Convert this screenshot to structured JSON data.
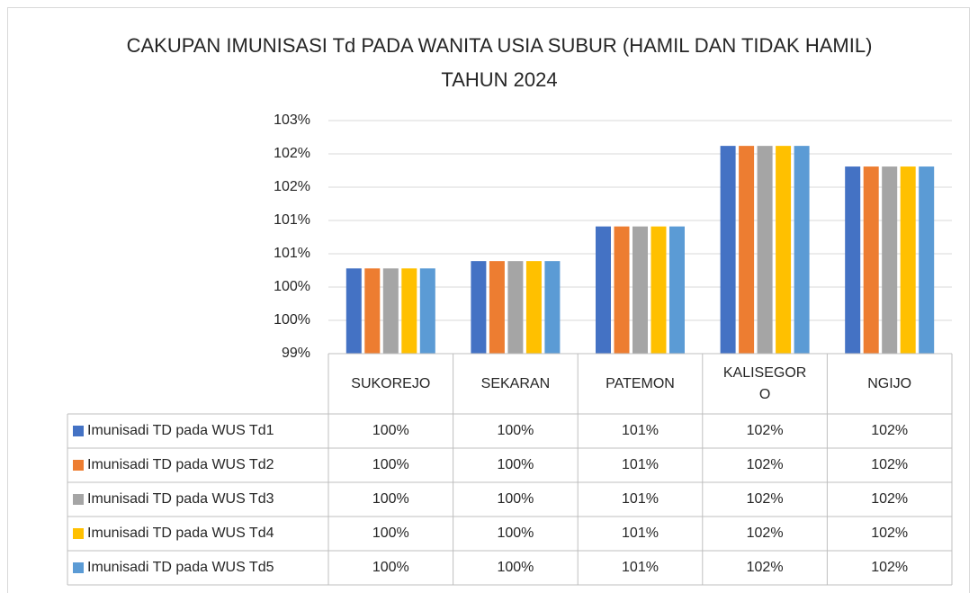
{
  "chart_data": {
    "type": "bar",
    "title": "CAKUPAN IMUNISASI Td PADA WANITA USIA SUBUR (HAMIL DAN TIDAK HAMIL) TAHUN 2024",
    "categories": [
      "SUKOREJO",
      "SEKARAN",
      "PATEMON",
      "KALISEGORO",
      "NGIJO"
    ],
    "series": [
      {
        "name": "Imunisadi TD pada WUS Td1",
        "color": "#4472c4",
        "values": [
          100.28,
          100.39,
          100.91,
          102.12,
          101.81
        ],
        "value_labels": [
          "100%",
          "100%",
          "101%",
          "102%",
          "102%"
        ]
      },
      {
        "name": "Imunisadi TD pada WUS Td2",
        "color": "#ed7d31",
        "values": [
          100.28,
          100.39,
          100.91,
          102.12,
          101.81
        ],
        "value_labels": [
          "100%",
          "100%",
          "101%",
          "102%",
          "102%"
        ]
      },
      {
        "name": "Imunisadi TD pada WUS Td3",
        "color": "#a5a5a5",
        "values": [
          100.28,
          100.39,
          100.91,
          102.12,
          101.81
        ],
        "value_labels": [
          "100%",
          "100%",
          "101%",
          "102%",
          "102%"
        ]
      },
      {
        "name": "Imunisadi TD pada WUS Td4",
        "color": "#ffc000",
        "values": [
          100.28,
          100.39,
          100.91,
          102.12,
          101.81
        ],
        "value_labels": [
          "100%",
          "100%",
          "101%",
          "102%",
          "102%"
        ]
      },
      {
        "name": "Imunisadi TD pada WUS Td5",
        "color": "#5b9bd5",
        "values": [
          100.28,
          100.39,
          100.91,
          102.12,
          101.81
        ],
        "value_labels": [
          "100%",
          "100%",
          "101%",
          "102%",
          "102%"
        ]
      }
    ],
    "ylim": [
      99,
      102.5
    ],
    "yticks": [
      {
        "value": 99,
        "label": "99%"
      },
      {
        "value": 99.5,
        "label": "100%"
      },
      {
        "value": 100,
        "label": "100%"
      },
      {
        "value": 100.5,
        "label": "101%"
      },
      {
        "value": 101,
        "label": "101%"
      },
      {
        "value": 101.5,
        "label": "102%"
      },
      {
        "value": 102,
        "label": "102%"
      },
      {
        "value": 102.5,
        "label": "103%"
      }
    ],
    "grid": true
  }
}
